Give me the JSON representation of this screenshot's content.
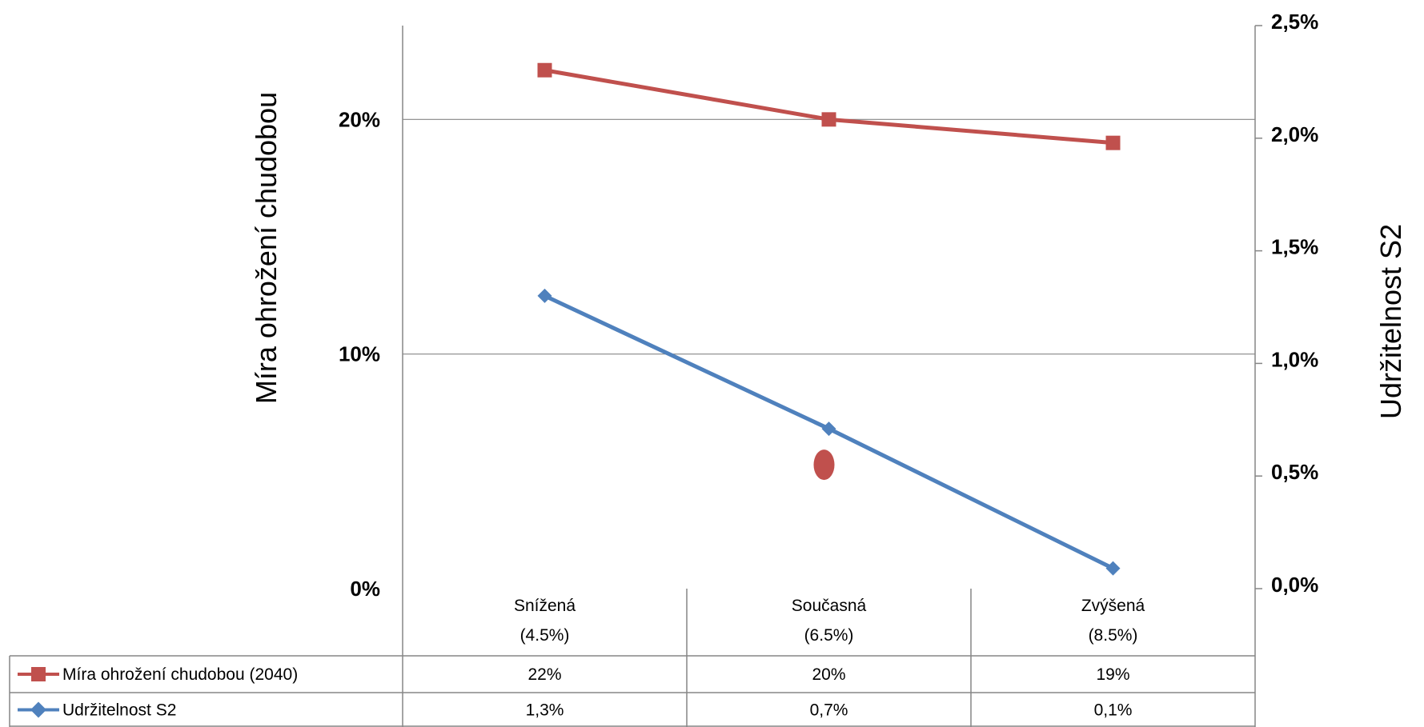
{
  "chart_data": {
    "type": "line",
    "categories": [
      [
        "Snížená",
        "(4.5%)"
      ],
      [
        "Současná",
        "(6.5%)"
      ],
      [
        "Zvýšená",
        "(8.5%)"
      ]
    ],
    "y_left": {
      "label": "Míra ohrožení chudobou",
      "min": 0,
      "max": 0.24,
      "ticks": [
        0,
        0.1,
        0.2
      ],
      "tick_labels": [
        "0%",
        "10%",
        "20%"
      ]
    },
    "y_right": {
      "label": "Udržitelnost  S2",
      "min": 0,
      "max": 0.025,
      "ticks": [
        0,
        0.005,
        0.01,
        0.015,
        0.02,
        0.025
      ],
      "tick_labels": [
        "0,0%",
        "0,5%",
        "1,0%",
        "1,5%",
        "2,0%",
        "2,5%"
      ]
    },
    "gridlines": true,
    "series": [
      {
        "name": "Míra ohrožení chudobou  (2040)",
        "axis": "left",
        "color": "#C0504D",
        "marker": "square",
        "values": [
          0.221,
          0.2,
          0.19
        ],
        "labels": [
          "22%",
          "20%",
          "19%"
        ]
      },
      {
        "name": "Udržitelnost S2",
        "axis": "right",
        "color": "#4F81BD",
        "marker": "diamond",
        "values": [
          0.013,
          0.0071,
          0.0009
        ],
        "labels": [
          "1,3%",
          "0,7%",
          "0,1%"
        ]
      }
    ],
    "annotations": [
      {
        "shape": "ellipse",
        "color": "#C0504D",
        "category_index": 1,
        "value": 0.0055,
        "axis": "right"
      }
    ],
    "legend": "data-table-bottom"
  }
}
